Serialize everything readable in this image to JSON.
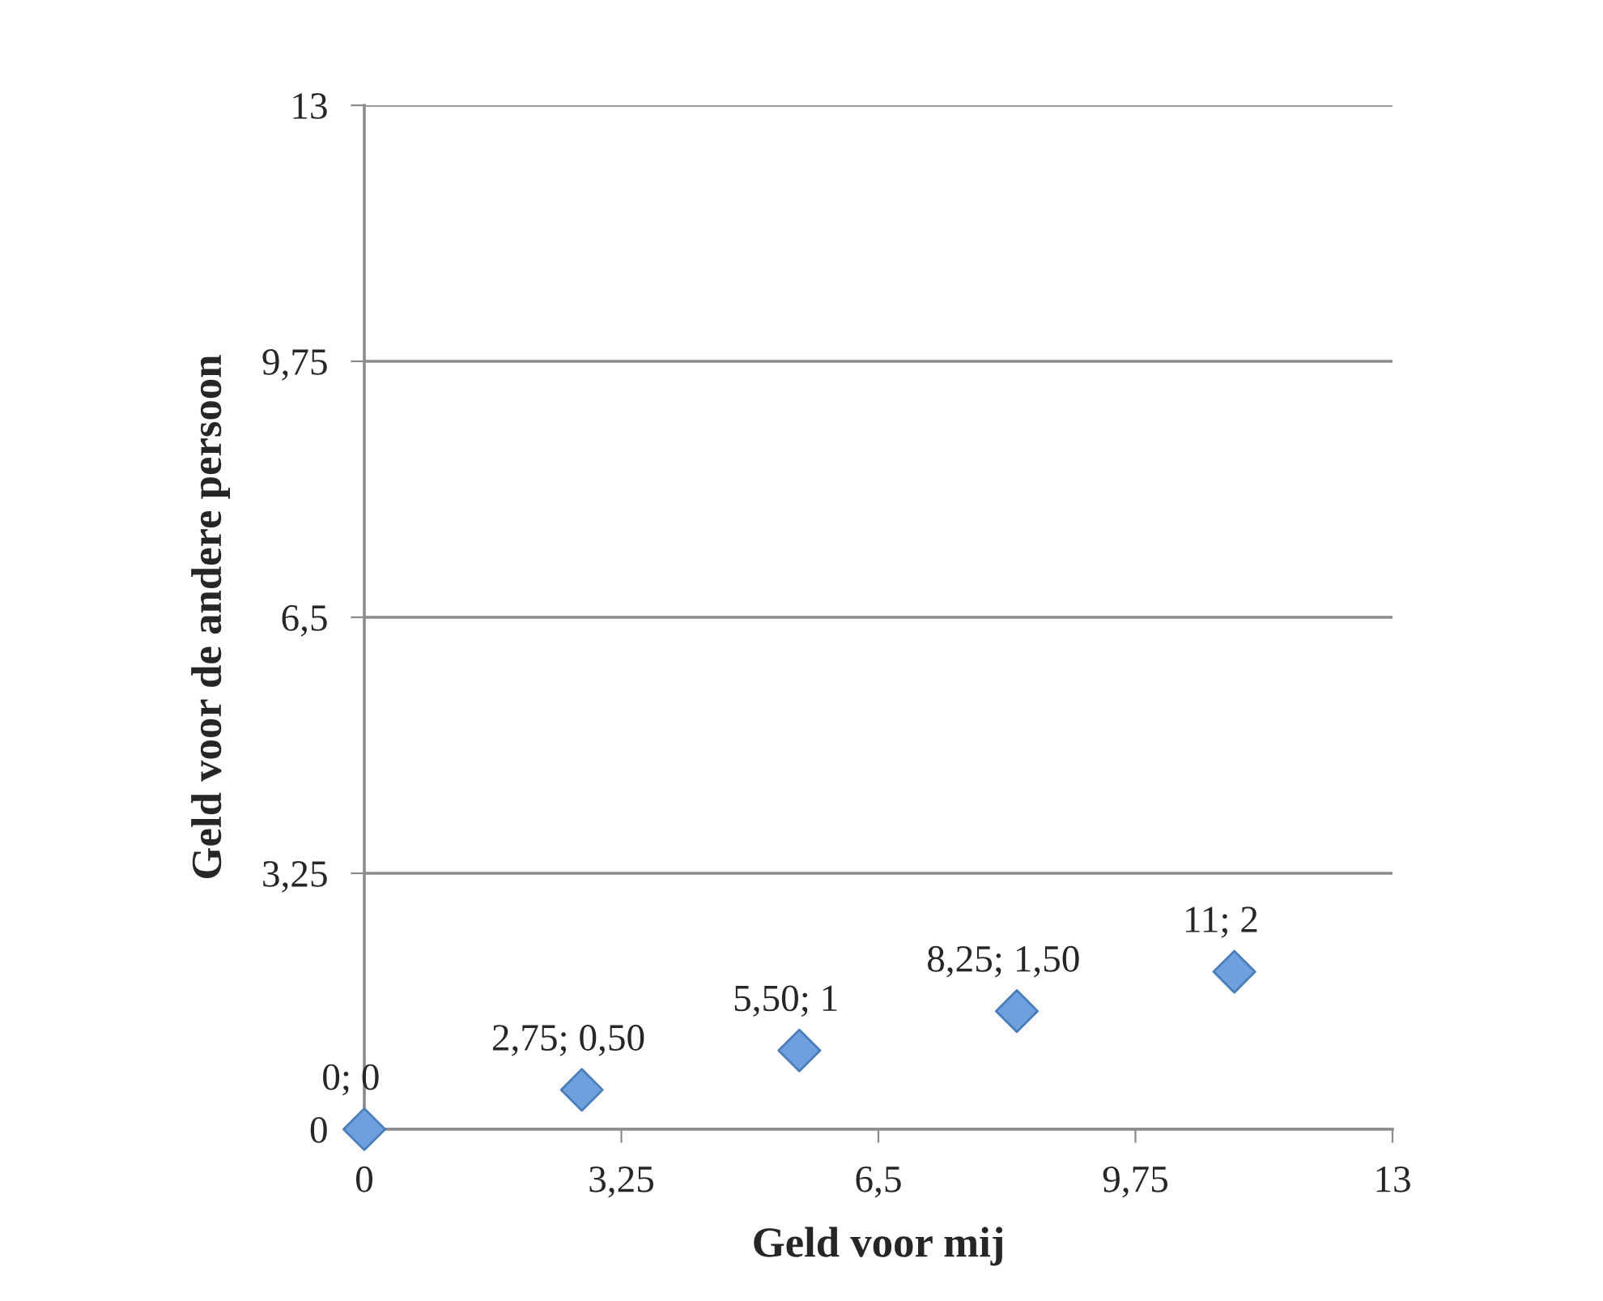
{
  "chart_data": {
    "type": "scatter",
    "xlabel": "Geld voor mij",
    "ylabel": "Geld voor de andere persoon",
    "x": [
      0,
      2.75,
      5.5,
      8.25,
      11
    ],
    "series": [
      {
        "color": "#6f9fdc",
        "values": [
          0,
          0.5,
          1,
          1.5,
          2
        ],
        "value_labels": [
          "0; 0",
          "2,75; 0,50",
          "5,50; 1",
          "8,25; 1,50",
          "11; 2"
        ]
      }
    ],
    "xlim": [
      0,
      13
    ],
    "ylim": [
      0,
      13
    ],
    "xticks": [
      0,
      {
        "value": 3.25,
        "label": "3,25"
      },
      {
        "value": 6.5,
        "label": "6,5"
      },
      {
        "value": 9.75,
        "label": "9,75"
      },
      13
    ],
    "yticks": [
      0,
      {
        "value": 3.25,
        "label": "3,25"
      },
      {
        "value": 6.5,
        "label": "6,5"
      },
      {
        "value": 9.75,
        "label": "9,75"
      },
      13
    ],
    "grid": "y",
    "marker": "diamond",
    "legend": false
  }
}
